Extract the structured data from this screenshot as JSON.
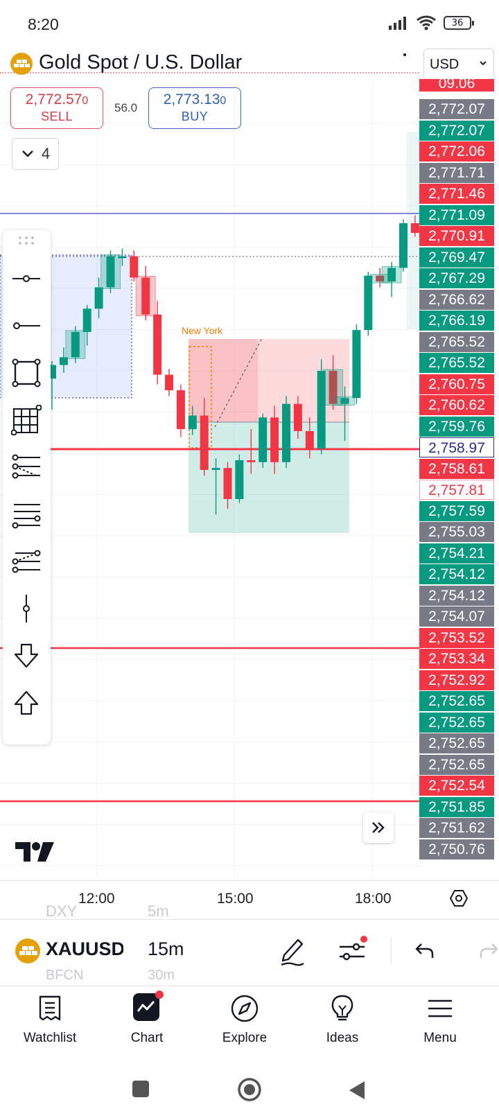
{
  "status_bar": {
    "time": "8:20",
    "battery": "36"
  },
  "header": {
    "title": "Gold Spot / U.S. Dollar",
    "currency": "USD"
  },
  "quote": {
    "sell_price": "2,772.57",
    "sell_price_small": "0",
    "sell_label": "SELL",
    "buy_price": "2,773.13",
    "buy_price_small": "0",
    "buy_label": "BUY",
    "spread": "56.0"
  },
  "collapse_count": "4",
  "chart_data": {
    "type": "candlestick",
    "symbol": "XAUUSD",
    "interval": "15m",
    "annotations": [
      "New York"
    ],
    "x_tick_labels": [
      "12:00",
      "15:00",
      "18:00"
    ],
    "price_labels": [
      {
        "value": "09.06",
        "color": "#f23645"
      },
      {
        "value": "2,772.07",
        "color": "#787b86"
      },
      {
        "value": "2,772.07",
        "color": "#089981"
      },
      {
        "value": "2,772.06",
        "color": "#f23645"
      },
      {
        "value": "2,771.71",
        "color": "#787b86"
      },
      {
        "value": "2,771.46",
        "color": "#f23645"
      },
      {
        "value": "2,771.09",
        "color": "#089981"
      },
      {
        "value": "2,770.91",
        "color": "#f23645"
      },
      {
        "value": "2,769.47",
        "color": "#089981"
      },
      {
        "value": "2,767.29",
        "color": "#089981"
      },
      {
        "value": "2,766.62",
        "color": "#787b86"
      },
      {
        "value": "2,766.19",
        "color": "#089981"
      },
      {
        "value": "2,765.52",
        "color": "#787b86"
      },
      {
        "value": "2,765.52",
        "color": "#089981"
      },
      {
        "value": "2,760.75",
        "color": "#f23645"
      },
      {
        "value": "2,760.62",
        "color": "#f23645"
      },
      {
        "value": "2,759.76",
        "color": "#089981"
      },
      {
        "value": "2,758.97",
        "color": "outline-blue"
      },
      {
        "value": "2,758.61",
        "color": "#f23645"
      },
      {
        "value": "2,757.81",
        "color": "outline-red"
      },
      {
        "value": "2,757.59",
        "color": "#089981"
      },
      {
        "value": "2,755.03",
        "color": "#787b86"
      },
      {
        "value": "2,754.21",
        "color": "#089981"
      },
      {
        "value": "2,754.12",
        "color": "#089981"
      },
      {
        "value": "2,754.12",
        "color": "#787b86"
      },
      {
        "value": "2,754.07",
        "color": "#787b86"
      },
      {
        "value": "2,753.52",
        "color": "#f23645"
      },
      {
        "value": "2,753.34",
        "color": "#f23645"
      },
      {
        "value": "2,752.92",
        "color": "#f23645"
      },
      {
        "value": "2,752.65",
        "color": "#089981"
      },
      {
        "value": "2,752.65",
        "color": "#089981"
      },
      {
        "value": "2,752.65",
        "color": "#787b86"
      },
      {
        "value": "2,752.65",
        "color": "#787b86"
      },
      {
        "value": "2,752.54",
        "color": "#f23645"
      },
      {
        "value": "2,751.85",
        "color": "#089981"
      },
      {
        "value": "2,751.62",
        "color": "#787b86"
      },
      {
        "value": "2,750.76",
        "color": "#787b86"
      }
    ],
    "candles": [
      {
        "o": 2762.6,
        "h": 2763.5,
        "l": 2761.0,
        "c": 2763.3
      },
      {
        "o": 2763.3,
        "h": 2764.2,
        "l": 2762.9,
        "c": 2763.7
      },
      {
        "o": 2763.7,
        "h": 2765.3,
        "l": 2763.4,
        "c": 2765.0
      },
      {
        "o": 2765.0,
        "h": 2766.4,
        "l": 2764.3,
        "c": 2766.2
      },
      {
        "o": 2766.2,
        "h": 2767.8,
        "l": 2765.7,
        "c": 2767.3
      },
      {
        "o": 2767.3,
        "h": 2769.2,
        "l": 2767.0,
        "c": 2768.9
      },
      {
        "o": 2768.8,
        "h": 2769.3,
        "l": 2768.4,
        "c": 2768.9
      },
      {
        "o": 2768.9,
        "h": 2769.2,
        "l": 2767.6,
        "c": 2767.8
      },
      {
        "o": 2767.8,
        "h": 2768.4,
        "l": 2765.6,
        "c": 2765.9
      },
      {
        "o": 2765.9,
        "h": 2766.6,
        "l": 2762.3,
        "c": 2762.8
      },
      {
        "o": 2762.8,
        "h": 2763.1,
        "l": 2761.7,
        "c": 2762.0
      },
      {
        "o": 2762.0,
        "h": 2762.3,
        "l": 2759.6,
        "c": 2760.0
      },
      {
        "o": 2760.0,
        "h": 2761.2,
        "l": 2759.7,
        "c": 2760.7
      },
      {
        "o": 2760.7,
        "h": 2761.6,
        "l": 2757.6,
        "c": 2757.9
      },
      {
        "o": 2757.9,
        "h": 2758.5,
        "l": 2755.6,
        "c": 2758.0
      },
      {
        "o": 2758.0,
        "h": 2758.3,
        "l": 2755.9,
        "c": 2756.4
      },
      {
        "o": 2756.4,
        "h": 2758.7,
        "l": 2756.2,
        "c": 2758.4
      },
      {
        "o": 2758.4,
        "h": 2760.0,
        "l": 2757.7,
        "c": 2758.3
      },
      {
        "o": 2758.3,
        "h": 2760.8,
        "l": 2758.0,
        "c": 2760.6
      },
      {
        "o": 2760.6,
        "h": 2761.2,
        "l": 2757.7,
        "c": 2758.3
      },
      {
        "o": 2758.3,
        "h": 2761.7,
        "l": 2758.0,
        "c": 2761.3
      },
      {
        "o": 2761.3,
        "h": 2761.7,
        "l": 2759.5,
        "c": 2759.9
      },
      {
        "o": 2759.9,
        "h": 2760.6,
        "l": 2758.5,
        "c": 2759.0
      },
      {
        "o": 2759.0,
        "h": 2763.6,
        "l": 2758.7,
        "c": 2763.0
      },
      {
        "o": 2763.0,
        "h": 2763.8,
        "l": 2761.0,
        "c": 2761.3
      },
      {
        "o": 2761.3,
        "h": 2762.2,
        "l": 2759.4,
        "c": 2761.6
      },
      {
        "o": 2761.6,
        "h": 2765.4,
        "l": 2761.3,
        "c": 2765.1
      },
      {
        "o": 2765.1,
        "h": 2768.1,
        "l": 2764.8,
        "c": 2767.9
      },
      {
        "o": 2767.9,
        "h": 2768.3,
        "l": 2767.3,
        "c": 2767.6
      },
      {
        "o": 2767.6,
        "h": 2768.6,
        "l": 2766.8,
        "c": 2768.3
      },
      {
        "o": 2768.3,
        "h": 2770.8,
        "l": 2768.1,
        "c": 2770.6
      },
      {
        "o": 2770.6,
        "h": 2771.0,
        "l": 2769.9,
        "c": 2770.1
      }
    ],
    "horizontal_lines": [
      {
        "price": 2771.1,
        "color": "#5b5fd6"
      },
      {
        "price": 2758.97,
        "color": "#f23645"
      },
      {
        "price": 2753.52,
        "color": "#f23645"
      },
      {
        "price": 2752.54,
        "color": "#f23645"
      }
    ]
  },
  "symbol_bar": {
    "logo_text": "",
    "symbol": "XAUUSD",
    "interval": "15m",
    "ghost_prev_symbol": "DXY",
    "ghost_prev_interval": "5m",
    "ghost_next_symbol": "BFCN",
    "ghost_next_interval": "30m"
  },
  "nav": [
    {
      "label": "Watchlist",
      "icon": "watchlist-icon"
    },
    {
      "label": "Chart",
      "icon": "chart-icon"
    },
    {
      "label": "Explore",
      "icon": "compass-icon"
    },
    {
      "label": "Ideas",
      "icon": "lightbulb-icon"
    },
    {
      "label": "Menu",
      "icon": "menu-icon"
    }
  ]
}
